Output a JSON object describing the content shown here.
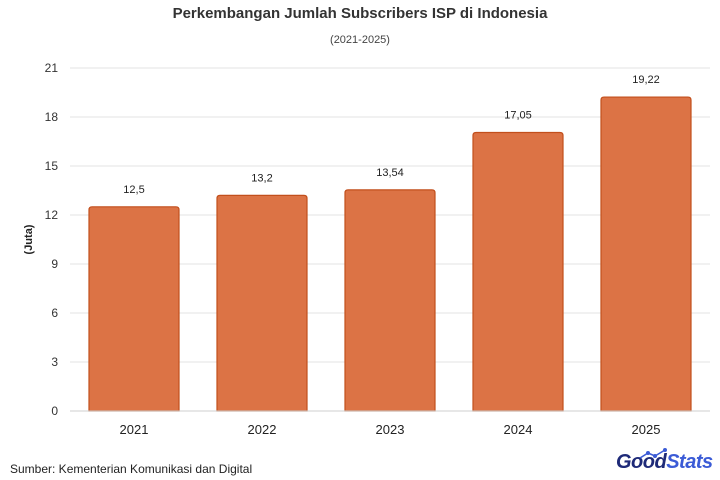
{
  "header": {
    "title": "Perkembangan Jumlah Subscribers ISP di Indonesia",
    "subtitle": "(2021-2025)"
  },
  "footer": {
    "source": "Sumber: Kementerian Komunikasi dan Digital",
    "logo_part1": "Good",
    "logo_part2": "Stats"
  },
  "colors": {
    "bar_fill": "#dc7345",
    "bar_stroke": "#c24f1c",
    "grid": "#e3e3e3",
    "logo_dark": "#1e2a78",
    "logo_light": "#3b5bd6"
  },
  "chart_data": {
    "type": "bar",
    "title": "Perkembangan Jumlah Subscribers ISP di Indonesia",
    "subtitle": "(2021-2025)",
    "xlabel": "",
    "ylabel": "(Juta)",
    "categories": [
      "2021",
      "2022",
      "2023",
      "2024",
      "2025"
    ],
    "values": [
      12.5,
      13.2,
      13.54,
      17.05,
      19.22
    ],
    "value_labels": [
      "12,5",
      "13,2",
      "13,54",
      "17,05",
      "19,22"
    ],
    "ylim": [
      0,
      21
    ],
    "yticks": [
      0,
      3,
      6,
      9,
      12,
      15,
      18,
      21
    ],
    "grid": true,
    "legend": "none"
  }
}
